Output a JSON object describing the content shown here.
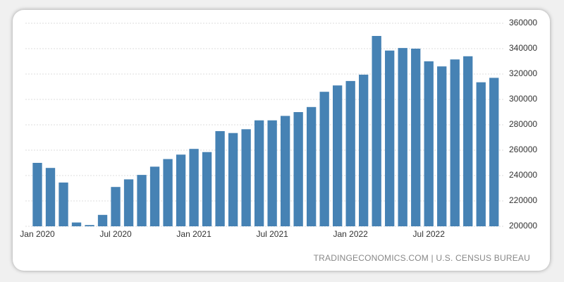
{
  "chart_data": {
    "type": "bar",
    "source": "TRADINGECONOMICS.COM | U.S. CENSUS BUREAU",
    "categories": [
      "Jan 2020",
      null,
      null,
      null,
      null,
      null,
      "Jul 2020",
      null,
      null,
      null,
      null,
      null,
      "Jan 2021",
      null,
      null,
      null,
      null,
      null,
      "Jul 2021",
      null,
      null,
      null,
      null,
      null,
      "Jan 2022",
      null,
      null,
      null,
      null,
      null,
      "Jul 2022",
      null,
      null,
      null,
      null,
      null
    ],
    "values": [
      250000,
      246000,
      234500,
      203000,
      201000,
      209000,
      231000,
      237000,
      240500,
      247000,
      253000,
      256500,
      261000,
      258500,
      275000,
      273500,
      276500,
      283500,
      283500,
      287000,
      290000,
      294000,
      306000,
      311000,
      314500,
      319500,
      350000,
      338500,
      340500,
      340000,
      330000,
      326000,
      331500,
      334000,
      313500,
      317000
    ],
    "color": "#4682b4",
    "ylim": [
      200000,
      360000
    ],
    "yticks": [
      200000,
      220000,
      240000,
      260000,
      280000,
      300000,
      320000,
      340000,
      360000
    ],
    "grid": true
  }
}
